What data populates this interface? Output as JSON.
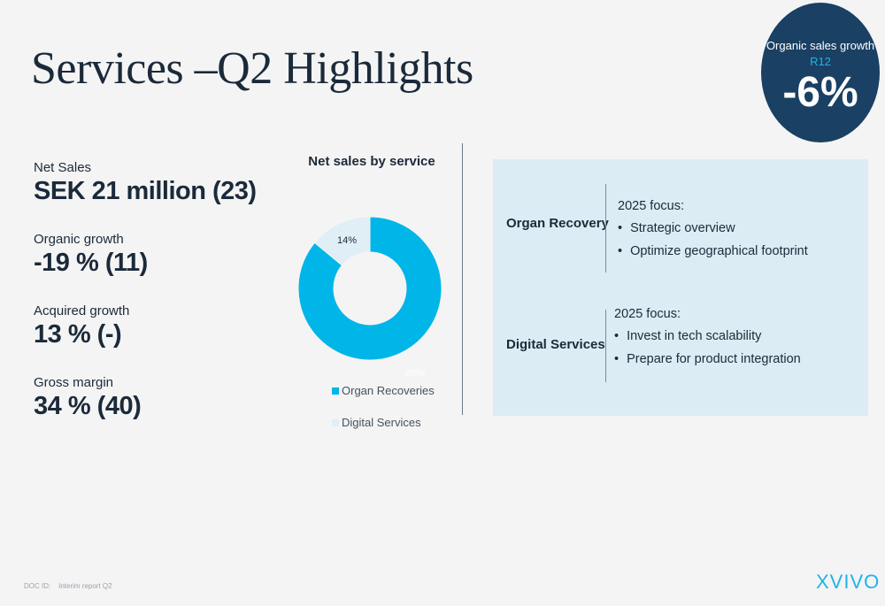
{
  "slide": {
    "title": "Services –Q2 Highlights"
  },
  "badge": {
    "label": "Organic sales growth",
    "accent": "R12",
    "value": "-6%"
  },
  "kpis": [
    {
      "label": "Net Sales",
      "value": "SEK 21 million (23)"
    },
    {
      "label": "Organic growth",
      "value": "-19 % (11)"
    },
    {
      "label": "Acquired growth",
      "value": "13 % (-)"
    },
    {
      "label": "Gross margin",
      "value": "34 % (40)"
    }
  ],
  "chart_data": {
    "type": "pie",
    "title": "Net sales by service",
    "categories": [
      "Organ Recoveries",
      "Digital Services"
    ],
    "values": [
      86,
      14
    ],
    "labels": [
      "86%",
      "14%"
    ],
    "colors": [
      "#00b5e8",
      "#e0eef6"
    ],
    "legend_position": "bottom"
  },
  "services": [
    {
      "name": "Organ Recovery",
      "focus_title": "2025 focus:",
      "items": [
        "Strategic overview",
        "Optimize geographical footprint"
      ]
    },
    {
      "name": "Digital Services",
      "focus_title": "2025 focus:",
      "items": [
        "Invest in tech scalability",
        "Prepare for product integration"
      ]
    }
  ],
  "footer": {
    "doc_id": "DOC ID:",
    "report": "Interim report Q2"
  },
  "brand": {
    "logo": "XVIVO",
    "accent_color": "#1eb4e8",
    "dark_color": "#1a4063"
  }
}
